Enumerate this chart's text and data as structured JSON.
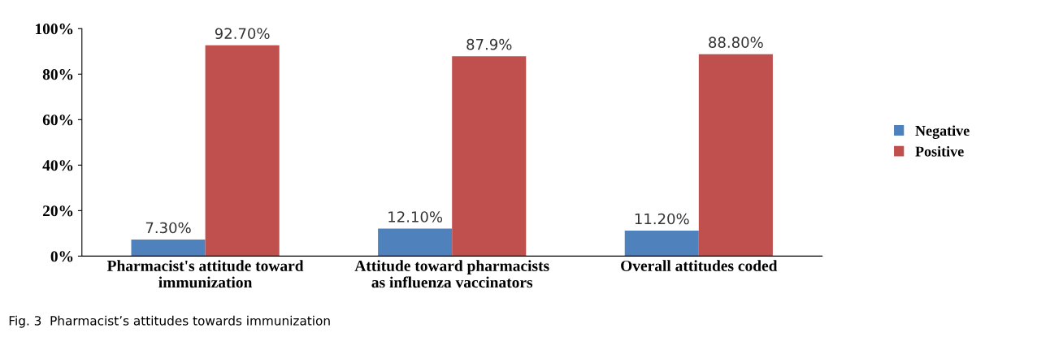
{
  "chart_data": {
    "type": "bar",
    "categories": [
      "Pharmacist's attitude toward\nimmunization",
      "Attitude toward pharmacists\nas influenza vaccinators",
      "Overall attitudes coded"
    ],
    "series": [
      {
        "name": "Negative",
        "color": "#4f81bd",
        "values": [
          7.3,
          12.1,
          11.2
        ],
        "value_labels": [
          "7.30%",
          "12.10%",
          "11.20%"
        ]
      },
      {
        "name": "Positive",
        "color": "#c0504d",
        "values": [
          92.7,
          87.9,
          88.8
        ],
        "value_labels": [
          "92.70%",
          "87.9%",
          "88.80%"
        ]
      }
    ],
    "ylim": [
      0,
      100
    ],
    "yticks": [
      {
        "value": 0,
        "label": "0%"
      },
      {
        "value": 20,
        "label": "20%"
      },
      {
        "value": 40,
        "label": "40%"
      },
      {
        "value": 60,
        "label": "60%"
      },
      {
        "value": 80,
        "label": "80%"
      },
      {
        "value": 100,
        "label": "100%"
      }
    ],
    "grid": false,
    "legend": "right",
    "annotations": [
      "Fig. 3  Pharmacist’s attitudes towards immunization"
    ]
  }
}
